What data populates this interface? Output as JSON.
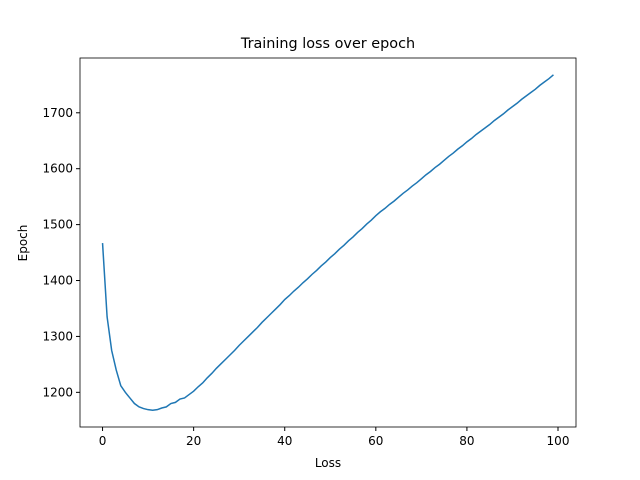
{
  "chart_data": {
    "type": "line",
    "title": "Training loss over epoch",
    "x_label": "Loss",
    "y_label": "Epoch",
    "x": [
      0,
      1,
      2,
      3,
      4,
      5,
      6,
      7,
      8,
      9,
      10,
      11,
      12,
      13,
      14,
      15,
      16,
      17,
      18,
      19,
      20,
      21,
      22,
      23,
      24,
      25,
      26,
      27,
      28,
      29,
      30,
      31,
      32,
      33,
      34,
      35,
      36,
      37,
      38,
      39,
      40,
      41,
      42,
      43,
      44,
      45,
      46,
      47,
      48,
      49,
      50,
      51,
      52,
      53,
      54,
      55,
      56,
      57,
      58,
      59,
      60,
      61,
      62,
      63,
      64,
      65,
      66,
      67,
      68,
      69,
      70,
      71,
      72,
      73,
      74,
      75,
      76,
      77,
      78,
      79,
      80,
      81,
      82,
      83,
      84,
      85,
      86,
      87,
      88,
      89,
      90,
      91,
      92,
      93,
      94,
      95,
      96,
      97,
      98,
      99
    ],
    "series": [
      {
        "name": "loss",
        "color": "#1f77b4",
        "values": [
          1467,
          1335,
          1275,
          1240,
          1212,
          1200,
          1190,
          1180,
          1174,
          1171,
          1169,
          1168,
          1169,
          1172,
          1174,
          1180,
          1182,
          1188,
          1190,
          1196,
          1202,
          1210,
          1217,
          1226,
          1234,
          1243,
          1251,
          1259,
          1267,
          1275,
          1284,
          1292,
          1300,
          1308,
          1316,
          1325,
          1333,
          1341,
          1349,
          1357,
          1366,
          1373,
          1381,
          1388,
          1396,
          1403,
          1411,
          1418,
          1426,
          1433,
          1441,
          1448,
          1456,
          1463,
          1471,
          1478,
          1486,
          1493,
          1501,
          1508,
          1516,
          1523,
          1529,
          1536,
          1542,
          1549,
          1556,
          1562,
          1569,
          1575,
          1582,
          1589,
          1595,
          1602,
          1608,
          1615,
          1622,
          1628,
          1635,
          1641,
          1648,
          1654,
          1661,
          1667,
          1673,
          1679,
          1686,
          1692,
          1698,
          1705,
          1711,
          1717,
          1724,
          1730,
          1736,
          1742,
          1749,
          1755,
          1761,
          1768
        ]
      }
    ],
    "xlim": [
      -4.95,
      103.95
    ],
    "ylim": [
      1138,
      1798
    ],
    "xticks": [
      0,
      20,
      40,
      60,
      80,
      100
    ],
    "yticks": [
      1200,
      1300,
      1400,
      1500,
      1600,
      1700
    ]
  }
}
